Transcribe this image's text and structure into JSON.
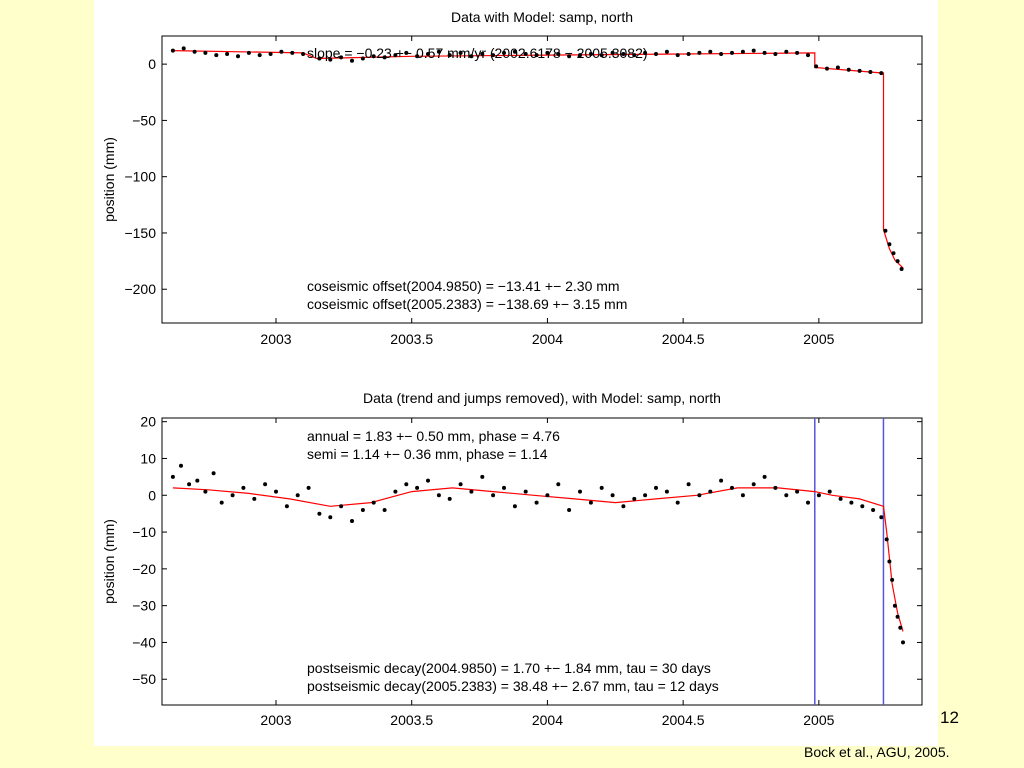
{
  "slide": {
    "number": "12",
    "citation": "Bock et al., AGU, 2005."
  },
  "colors": {
    "background": "#ffffcc",
    "figure": "#ffffff",
    "data_points": "#000000",
    "model_line": "#ff0000",
    "event_lines": "#5555dd"
  },
  "chart_data": [
    {
      "type": "scatter",
      "title": "Data with Model:   samp,  north",
      "xlabel": "",
      "ylabel": "position (mm)",
      "xlim": [
        2002.58,
        2005.38
      ],
      "ylim": [
        -230,
        25
      ],
      "xticks": [
        2003,
        2003.5,
        2004,
        2004.5,
        2005
      ],
      "xtick_labels": [
        "2003",
        "2003.5",
        "2004",
        "2004.5",
        "2005"
      ],
      "yticks": [
        0,
        -50,
        -100,
        -150,
        -200
      ],
      "ytick_labels": [
        "0",
        "−50",
        "−100",
        "−150",
        "−200"
      ],
      "annotations_top": [
        "slope =  −0.23 +−   0.57 mm/yr (2002.6178 − 2005.3082)"
      ],
      "annotations_bottom": [
        "coseismic offset(2004.9850) = −13.41 +−   2.30 mm",
        "coseismic offset(2005.2383) = −138.69 +−   3.15 mm"
      ],
      "series": [
        {
          "kind": "scatter",
          "x": [
            2002.62,
            2002.66,
            2002.7,
            2002.74,
            2002.78,
            2002.82,
            2002.86,
            2002.9,
            2002.94,
            2002.98,
            2003.02,
            2003.06,
            2003.1,
            2003.16,
            2003.2,
            2003.24,
            2003.28,
            2003.32,
            2003.36,
            2003.4,
            2003.44,
            2003.48,
            2003.52,
            2003.56,
            2003.6,
            2003.64,
            2003.68,
            2003.72,
            2003.76,
            2003.8,
            2003.84,
            2003.88,
            2003.92,
            2003.96,
            2004.0,
            2004.04,
            2004.08,
            2004.12,
            2004.16,
            2004.2,
            2004.24,
            2004.28,
            2004.32,
            2004.36,
            2004.4,
            2004.44,
            2004.48,
            2004.52,
            2004.56,
            2004.6,
            2004.64,
            2004.68,
            2004.72,
            2004.76,
            2004.8,
            2004.84,
            2004.88,
            2004.92,
            2004.96,
            2004.99,
            2005.03,
            2005.07,
            2005.11,
            2005.15,
            2005.19,
            2005.23,
            2005.245,
            2005.26,
            2005.275,
            2005.29,
            2005.305
          ],
          "y": [
            12,
            14,
            11,
            10,
            8,
            9,
            7,
            10,
            8,
            9,
            11,
            10,
            9,
            5,
            4,
            6,
            3,
            5,
            7,
            6,
            8,
            10,
            7,
            9,
            11,
            8,
            10,
            7,
            9,
            8,
            10,
            11,
            9,
            8,
            10,
            9,
            7,
            8,
            9,
            8,
            10,
            9,
            8,
            10,
            9,
            11,
            8,
            9,
            10,
            11,
            9,
            10,
            11,
            12,
            10,
            9,
            11,
            10,
            8,
            -2,
            -4,
            -3,
            -5,
            -6,
            -7,
            -8,
            -148,
            -160,
            -168,
            -175,
            -182
          ]
        },
        {
          "kind": "line",
          "x": [
            2002.62,
            2003.1,
            2003.15,
            2003.5,
            2004.0,
            2004.5,
            2004.985,
            2004.985,
            2005.238,
            2005.238,
            2005.26,
            2005.28,
            2005.31
          ],
          "y": [
            12,
            10,
            5,
            7,
            8,
            9,
            10,
            -3,
            -8,
            -147,
            -164,
            -174,
            -181
          ]
        }
      ]
    },
    {
      "type": "scatter",
      "title": "Data (trend and jumps removed), with Model:   samp,  north",
      "xlabel": "",
      "ylabel": "position (mm)",
      "xlim": [
        2002.58,
        2005.38
      ],
      "ylim": [
        -57,
        21
      ],
      "xticks": [
        2003,
        2003.5,
        2004,
        2004.5,
        2005
      ],
      "xtick_labels": [
        "2003",
        "2003.5",
        "2004",
        "2004.5",
        "2005"
      ],
      "yticks": [
        20,
        10,
        0,
        -10,
        -20,
        -30,
        -40,
        -50
      ],
      "ytick_labels": [
        "20",
        "10",
        "0",
        "−10",
        "−20",
        "−30",
        "−40",
        "−50"
      ],
      "vlines": [
        2004.985,
        2005.238
      ],
      "annotations_top": [
        "annual =   1.83 +−   0.50 mm, phase =   4.76",
        "semi =   1.14 +−   0.36 mm, phase =   1.14"
      ],
      "annotations_bottom": [
        "postseismic decay(2004.9850) =   1.70 +−   1.84 mm, tau = 30 days",
        "postseismic decay(2005.2383) =  38.48 +−   2.67 mm, tau = 12 days"
      ],
      "series": [
        {
          "kind": "scatter",
          "x": [
            2002.62,
            2002.65,
            2002.68,
            2002.71,
            2002.74,
            2002.77,
            2002.8,
            2002.84,
            2002.88,
            2002.92,
            2002.96,
            2003.0,
            2003.04,
            2003.08,
            2003.12,
            2003.16,
            2003.2,
            2003.24,
            2003.28,
            2003.32,
            2003.36,
            2003.4,
            2003.44,
            2003.48,
            2003.52,
            2003.56,
            2003.6,
            2003.64,
            2003.68,
            2003.72,
            2003.76,
            2003.8,
            2003.84,
            2003.88,
            2003.92,
            2003.96,
            2004.0,
            2004.04,
            2004.08,
            2004.12,
            2004.16,
            2004.2,
            2004.24,
            2004.28,
            2004.32,
            2004.36,
            2004.4,
            2004.44,
            2004.48,
            2004.52,
            2004.56,
            2004.6,
            2004.64,
            2004.68,
            2004.72,
            2004.76,
            2004.8,
            2004.84,
            2004.88,
            2004.92,
            2004.96,
            2005.0,
            2005.04,
            2005.08,
            2005.12,
            2005.16,
            2005.2,
            2005.23,
            2005.25,
            2005.26,
            2005.27,
            2005.28,
            2005.29,
            2005.3,
            2005.31
          ],
          "y": [
            5,
            8,
            3,
            4,
            1,
            6,
            -2,
            0,
            2,
            -1,
            3,
            1,
            -3,
            0,
            2,
            -5,
            -6,
            -3,
            -7,
            -4,
            -2,
            -4,
            1,
            3,
            2,
            4,
            0,
            -1,
            3,
            1,
            5,
            0,
            2,
            -3,
            1,
            -2,
            0,
            3,
            -4,
            1,
            -2,
            2,
            0,
            -3,
            -1,
            0,
            2,
            1,
            -2,
            3,
            0,
            1,
            4,
            2,
            0,
            3,
            5,
            2,
            0,
            1,
            -2,
            0,
            1,
            -1,
            -2,
            -3,
            -4,
            -6,
            -12,
            -18,
            -23,
            -30,
            -33,
            -36,
            -40
          ]
        },
        {
          "kind": "line",
          "x": [
            2002.62,
            2002.75,
            2002.9,
            2003.05,
            2003.2,
            2003.35,
            2003.5,
            2003.65,
            2003.8,
            2003.95,
            2004.1,
            2004.25,
            2004.4,
            2004.55,
            2004.7,
            2004.85,
            2004.985,
            2005.05,
            2005.15,
            2005.238,
            2005.25,
            2005.27,
            2005.29,
            2005.31
          ],
          "y": [
            2,
            1.5,
            0.5,
            -1,
            -3,
            -2,
            1,
            2,
            1,
            0,
            -1,
            -2,
            -1,
            0,
            2,
            2,
            1,
            0,
            -1,
            -3,
            -10,
            -24,
            -32,
            -37
          ]
        }
      ]
    }
  ]
}
